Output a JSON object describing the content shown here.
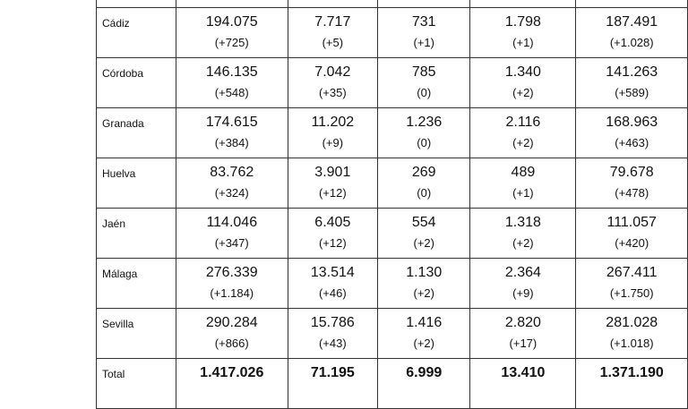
{
  "rows": [
    {
      "province": "Cádiz",
      "values": [
        "194.075",
        "7.717",
        "731",
        "1.798",
        "187.491"
      ],
      "deltas": [
        "(+725)",
        "(+5)",
        "(+1)",
        "(+1)",
        "(+1.028)"
      ]
    },
    {
      "province": "Córdoba",
      "values": [
        "146.135",
        "7.042",
        "785",
        "1.340",
        "141.263"
      ],
      "deltas": [
        "(+548)",
        "(+35)",
        "(0)",
        "(+2)",
        "(+589)"
      ]
    },
    {
      "province": "Granada",
      "values": [
        "174.615",
        "11.202",
        "1.236",
        "2.116",
        "168.963"
      ],
      "deltas": [
        "(+384)",
        "(+9)",
        "(0)",
        "(+2)",
        "(+463)"
      ]
    },
    {
      "province": "Huelva",
      "values": [
        "83.762",
        "3.901",
        "269",
        "489",
        "79.678"
      ],
      "deltas": [
        "(+324)",
        "(+12)",
        "(0)",
        "(+1)",
        "(+478)"
      ]
    },
    {
      "province": "Jaén",
      "values": [
        "114.046",
        "6.405",
        "554",
        "1.318",
        "111.057"
      ],
      "deltas": [
        "(+347)",
        "(+12)",
        "(+2)",
        "(+2)",
        "(+420)"
      ]
    },
    {
      "province": "Málaga",
      "values": [
        "276.339",
        "13.514",
        "1.130",
        "2.364",
        "267.411"
      ],
      "deltas": [
        "(+1.184)",
        "(+46)",
        "(+2)",
        "(+9)",
        "(+1.750)"
      ]
    },
    {
      "province": "Sevilla",
      "values": [
        "290.284",
        "15.786",
        "1.416",
        "2.820",
        "281.028"
      ],
      "deltas": [
        "(+866)",
        "(+43)",
        "(+2)",
        "(+17)",
        "(+1.018)"
      ]
    }
  ],
  "total": {
    "label": "Total",
    "values": [
      "1.417.026",
      "71.195",
      "6.999",
      "13.410",
      "1.371.190"
    ]
  }
}
